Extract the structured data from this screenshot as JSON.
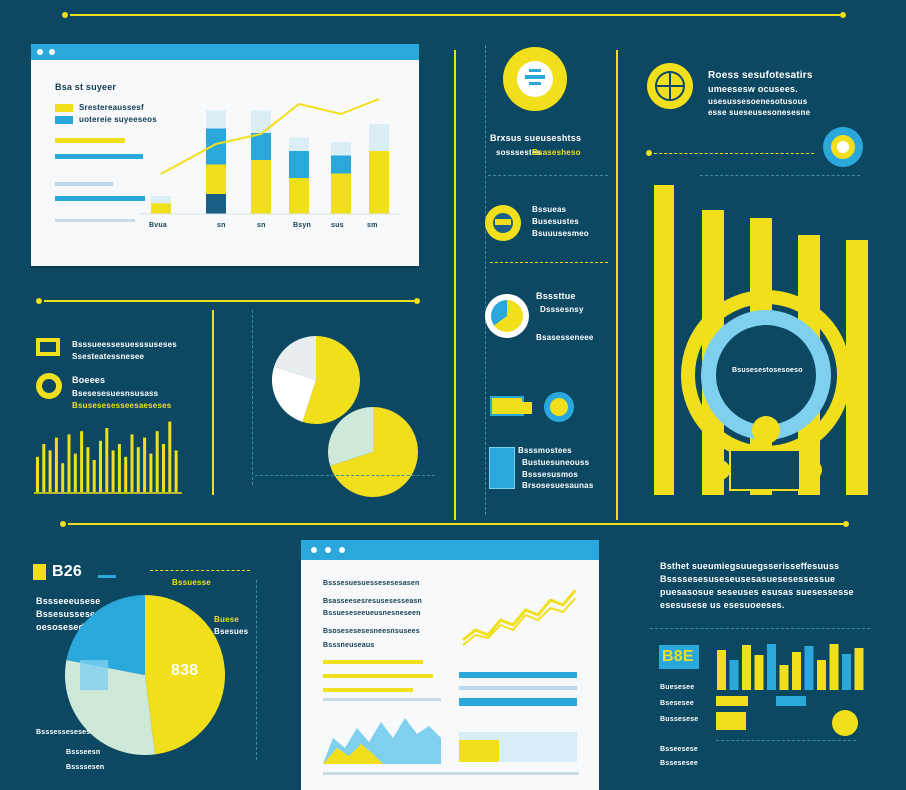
{
  "colors": {
    "background": "#0d4863",
    "accent_yellow": "#f1df1c",
    "accent_blue": "#2aa8dc",
    "panel": "#f7f9fa",
    "dark_blue": "#1a5f86"
  },
  "top_left_panel": {
    "title": "Bsa st suyeer",
    "subtitle_1": "Srestereaussesf",
    "subtitle_2": "uotereie suyeeseos",
    "tick_labels": [
      "Bvua",
      "sn",
      "sn",
      "Bsyn",
      "sus",
      "sm"
    ],
    "chart_data": {
      "type": "bar",
      "categories": [
        "Bvua",
        "sn",
        "sn",
        "Bsyn",
        "sus",
        "sm"
      ],
      "series": [
        {
          "values": [
            12,
            55,
            60,
            40,
            45,
            70
          ]
        },
        {
          "values": [
            0,
            40,
            30,
            30,
            20,
            0
          ]
        },
        {
          "values": [
            8,
            20,
            25,
            15,
            15,
            30
          ]
        }
      ]
    }
  },
  "middle_column": {
    "block1": {
      "line1": "Brxsus sueuseshtss",
      "line2a": "sosssestes",
      "line2b": "Bsasesheso"
    },
    "block2": {
      "line1": "Bssueas",
      "line2": "Busesustes",
      "line3": "Bsuuusesmeo"
    },
    "block3": {
      "line1": "Bsssttue",
      "line2": "Dsssesnsy",
      "line3": "Bsasesseneee"
    },
    "block4": {
      "line1": "Bsssmostees",
      "line2": "Bustuesuneouss"
    },
    "block5": {
      "line1": "Bsssesusmos",
      "line2": "Bsassuesneesss",
      "line3": "Brsosesuesaunas"
    }
  },
  "right_panel": {
    "title": "Roess sesufotesatirs",
    "line2": "umeesesw ocusees.",
    "line3": "usesussesoenesotusous",
    "line4": "esse sueseusesonesesne",
    "circle_text": "Bsusesestosesoeso"
  },
  "middle_left": {
    "block1_line1": "Bsssueessesuesssuseses",
    "block1_line2": "Ssesteatessnesee",
    "block2_line1": "Boeees",
    "block2_line2": "Bsesesesuesnsusass",
    "block2_line3": "Bsusesesesseesaeseses",
    "chart_data": {
      "type": "bar",
      "values": [
        22,
        30,
        26,
        34,
        18,
        36,
        24,
        38,
        28,
        20,
        32,
        40,
        26,
        30,
        22,
        36,
        28,
        34,
        24,
        38,
        30,
        44,
        26
      ]
    }
  },
  "pies": {
    "chart_data": [
      {
        "type": "pie",
        "values": [
          55,
          25,
          20
        ]
      },
      {
        "type": "pie",
        "values": [
          70,
          30
        ]
      }
    ]
  },
  "bottom_left": {
    "heading": "B26",
    "line1": "Bssseeeusese",
    "line2": "Bssesusseseuesses",
    "line3": "oesosesed enesane",
    "pie_label": "838",
    "label_top": "Bssuesse",
    "label_right_1": "Buese",
    "label_right_2": "Bsesues",
    "footer_1": "Bsssesseseses",
    "footer_2": "Bssseesn",
    "footer_3": "Bssssesen",
    "chart_data": {
      "type": "pie",
      "values": [
        48,
        30,
        22
      ]
    }
  },
  "bottom_window": {
    "header": "Bsssesuesuessesesesasen",
    "row1": "Bsasseesesresusesesseasn",
    "row2": "Bssueseseeueusnesneseen",
    "row3": "Bsosesesesesneesnsusees",
    "row4": "Bsssneuseaus",
    "chart_data": {
      "type": "line",
      "series": [
        {
          "values": [
            20,
            30,
            25,
            40,
            35,
            50,
            45,
            60,
            55,
            70
          ]
        },
        {
          "values": [
            15,
            25,
            22,
            35,
            30,
            45,
            40,
            52,
            48,
            62
          ]
        }
      ]
    }
  },
  "bottom_right": {
    "line1": "Bsthet sueumiegsuuegsserisseffesuuss",
    "line2": "Bssssesesuseseusesasuesesessessue",
    "line3": "puesasosue seseuses esusas suesessesse",
    "line4": "esesusese us esesuoeeses.",
    "badge": "B8E",
    "legend": [
      "Buesesee",
      "Bsesesee",
      "Bussesese",
      "Bsseesese",
      "Bssesesee"
    ],
    "chart_data": {
      "type": "bar",
      "values": [
        40,
        30,
        45,
        35,
        50,
        25,
        38,
        44,
        30,
        46,
        36,
        42
      ]
    }
  }
}
